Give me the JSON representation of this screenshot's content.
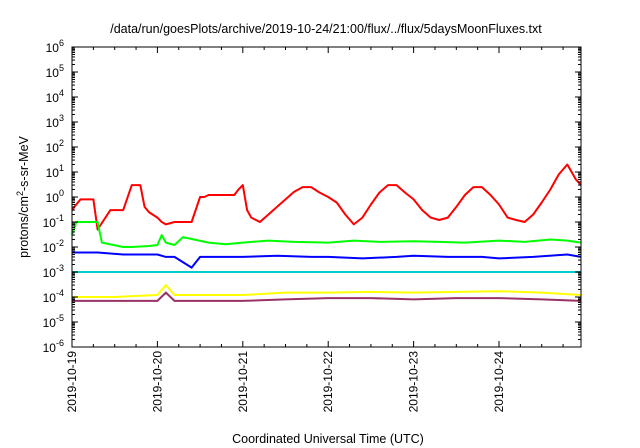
{
  "chart_data": {
    "type": "line",
    "title": "/data/run/goesPlots/archive/2019-10-24/21:00/flux/../flux/5daysMoonFluxes.txt",
    "xlabel": "Coordinated Universal Time (UTC)",
    "ylabel": "protons/cm2-s-sr-MeV",
    "ylabel_parts": {
      "pre": "protons/cm",
      "sup": "2",
      "post": "-s-sr-MeV"
    },
    "yscale": "log",
    "ylim": [
      1e-06,
      1000000.0
    ],
    "xlim": [
      0,
      5.96
    ],
    "x_unit": "days since 2019-10-19 00:00 UTC",
    "x_ticks": [
      {
        "value": 0,
        "label": "2019-10-19"
      },
      {
        "value": 1,
        "label": "2019-10-20"
      },
      {
        "value": 2,
        "label": "2019-10-21"
      },
      {
        "value": 3,
        "label": "2019-10-22"
      },
      {
        "value": 4,
        "label": "2019-10-23"
      },
      {
        "value": 5,
        "label": "2019-10-24"
      }
    ],
    "y_ticks": [
      {
        "value": 1e-06,
        "base": "10",
        "exp": "-6"
      },
      {
        "value": 1e-05,
        "base": "10",
        "exp": "-5"
      },
      {
        "value": 0.0001,
        "base": "10",
        "exp": "-4"
      },
      {
        "value": 0.001,
        "base": "10",
        "exp": "-3"
      },
      {
        "value": 0.01,
        "base": "10",
        "exp": "-2"
      },
      {
        "value": 0.1,
        "base": "10",
        "exp": "-1"
      },
      {
        "value": 1,
        "base": "10",
        "exp": "0"
      },
      {
        "value": 10,
        "base": "10",
        "exp": "1"
      },
      {
        "value": 100,
        "base": "10",
        "exp": "2"
      },
      {
        "value": 1000,
        "base": "10",
        "exp": "3"
      },
      {
        "value": 10000,
        "base": "10",
        "exp": "4"
      },
      {
        "value": 100000,
        "base": "10",
        "exp": "5"
      },
      {
        "value": 1000000,
        "base": "10",
        "exp": "6"
      }
    ],
    "grid": false,
    "legend": "none",
    "series": [
      {
        "color": "#ff0000",
        "x": [
          0,
          0.05,
          0.1,
          0.25,
          0.3,
          0.45,
          0.5,
          0.6,
          0.7,
          0.8,
          0.85,
          0.9,
          1.0,
          1.05,
          1.1,
          1.2,
          1.3,
          1.4,
          1.5,
          1.55,
          1.6,
          1.7,
          1.8,
          1.9,
          1.95,
          2.0,
          2.05,
          2.1,
          2.2,
          2.3,
          2.4,
          2.5,
          2.6,
          2.7,
          2.8,
          2.9,
          3.0,
          3.1,
          3.2,
          3.3,
          3.4,
          3.5,
          3.6,
          3.7,
          3.8,
          3.9,
          4.0,
          4.1,
          4.2,
          4.3,
          4.4,
          4.5,
          4.6,
          4.7,
          4.8,
          4.9,
          5.0,
          5.1,
          5.2,
          5.3,
          5.4,
          5.5,
          5.6,
          5.7,
          5.8,
          5.85,
          5.9,
          5.96
        ],
        "y": [
          0.3,
          0.5,
          0.8,
          0.8,
          0.05,
          0.3,
          0.3,
          0.3,
          3,
          3,
          0.4,
          0.25,
          0.15,
          0.1,
          0.08,
          0.1,
          0.1,
          0.1,
          1,
          1,
          1.2,
          1.2,
          1.2,
          1.2,
          2,
          3,
          0.3,
          0.15,
          0.1,
          0.2,
          0.4,
          0.8,
          1.6,
          2.5,
          2.5,
          1.5,
          1,
          0.6,
          0.2,
          0.08,
          0.15,
          0.5,
          1.5,
          3,
          3,
          1.5,
          0.8,
          0.3,
          0.15,
          0.12,
          0.15,
          0.4,
          1.2,
          2.5,
          2.5,
          1.2,
          0.5,
          0.15,
          0.12,
          0.1,
          0.2,
          0.6,
          2,
          8,
          20,
          10,
          5,
          3
        ]
      },
      {
        "color": "#00ff00",
        "x": [
          0,
          0.05,
          0.15,
          0.3,
          0.35,
          0.6,
          0.7,
          0.9,
          1.0,
          1.05,
          1.1,
          1.2,
          1.3,
          1.6,
          1.8,
          2.0,
          2.3,
          2.6,
          3.0,
          3.3,
          3.6,
          4.0,
          4.3,
          4.6,
          5.0,
          5.3,
          5.6,
          5.8,
          5.96
        ],
        "y": [
          0.03,
          0.1,
          0.1,
          0.1,
          0.015,
          0.01,
          0.01,
          0.011,
          0.012,
          0.03,
          0.015,
          0.012,
          0.025,
          0.015,
          0.013,
          0.015,
          0.018,
          0.016,
          0.015,
          0.018,
          0.016,
          0.017,
          0.016,
          0.015,
          0.018,
          0.016,
          0.02,
          0.018,
          0.015
        ]
      },
      {
        "color": "#0000ff",
        "x": [
          0,
          0.3,
          0.6,
          0.9,
          1.0,
          1.1,
          1.2,
          1.4,
          1.5,
          1.6,
          1.8,
          2.0,
          2.4,
          2.8,
          3.0,
          3.4,
          3.8,
          4.0,
          4.4,
          4.8,
          5.0,
          5.4,
          5.8,
          5.96
        ],
        "y": [
          0.006,
          0.006,
          0.005,
          0.005,
          0.005,
          0.004,
          0.004,
          0.0015,
          0.004,
          0.004,
          0.004,
          0.004,
          0.0045,
          0.004,
          0.004,
          0.0035,
          0.004,
          0.0045,
          0.004,
          0.004,
          0.0035,
          0.004,
          0.005,
          0.004
        ]
      },
      {
        "color": "#00cccc",
        "x": [
          0,
          0.3,
          0.6,
          0.9,
          1.0,
          1.2,
          1.4,
          1.6,
          1.8,
          2.0,
          2.4,
          2.8,
          3.0,
          3.4,
          3.8,
          4.0,
          4.4,
          4.8,
          5.0,
          5.4,
          5.8,
          5.96
        ],
        "y": [
          0.001,
          0.001,
          0.001,
          0.001,
          0.001,
          0.001,
          0.001,
          0.001,
          0.001,
          0.001,
          0.001,
          0.001,
          0.001,
          0.001,
          0.001,
          0.001,
          0.001,
          0.001,
          0.001,
          0.001,
          0.001,
          0.001
        ]
      },
      {
        "color": "#ffff00",
        "x": [
          0,
          0.5,
          1.0,
          1.1,
          1.2,
          1.5,
          2.0,
          2.5,
          3.0,
          3.5,
          4.0,
          4.5,
          5.0,
          5.5,
          5.96
        ],
        "y": [
          0.0001,
          0.0001,
          0.00012,
          0.0003,
          0.00012,
          0.00012,
          0.00012,
          0.00015,
          0.00015,
          0.00016,
          0.00015,
          0.00016,
          0.00017,
          0.00015,
          0.00012
        ]
      },
      {
        "color": "#993366",
        "x": [
          0,
          0.5,
          1.0,
          1.1,
          1.2,
          1.5,
          2.0,
          2.5,
          3.0,
          3.5,
          4.0,
          4.5,
          5.0,
          5.5,
          5.96
        ],
        "y": [
          7e-05,
          7e-05,
          7e-05,
          0.00015,
          7e-05,
          7e-05,
          7e-05,
          8e-05,
          9e-05,
          9e-05,
          8e-05,
          9e-05,
          9e-05,
          8e-05,
          7e-05
        ]
      }
    ]
  }
}
